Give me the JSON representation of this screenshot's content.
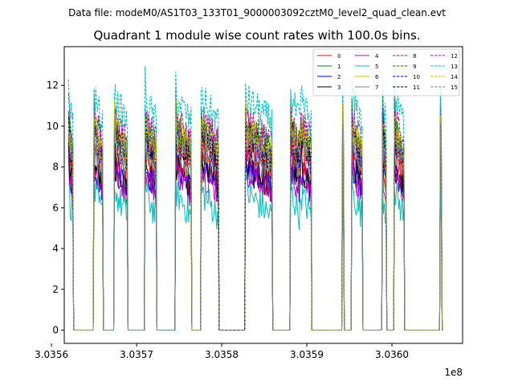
{
  "figure": {
    "suptitle": "Data file: modeM0/AS1T03_133T01_9000003092cztM0_level2_quad_clean.evt",
    "title": "Quadrant 1 module wise count rates with 100.0s bins.",
    "offset_label": "1e8"
  },
  "chart_data": {
    "type": "line",
    "title": "Quadrant 1 module wise count rates with 100.0s bins.",
    "xlabel": "",
    "ylabel": "",
    "xlim": [
      303561500,
      303608300
    ],
    "ylim": [
      -0.65,
      13.9
    ],
    "x_ticks": [
      303560000,
      303570000,
      303580000,
      303590000,
      303600000
    ],
    "x_tick_labels": [
      "3.0356",
      "3.0357",
      "3.0358",
      "3.0359",
      "3.0360"
    ],
    "y_ticks": [
      0,
      2,
      4,
      6,
      8,
      10,
      12
    ],
    "y_tick_labels": [
      "0",
      "2",
      "4",
      "6",
      "8",
      "10",
      "12"
    ],
    "x_offset_text": "1e8",
    "grid": false,
    "legend_position": "top-right",
    "legend_columns": 4,
    "bin_seconds": 100,
    "observation_segments": [
      {
        "start": 303562000,
        "end": 303562500
      },
      {
        "start": 303565000,
        "end": 303566000
      },
      {
        "start": 303567400,
        "end": 303568900
      },
      {
        "start": 303571000,
        "end": 303572300
      },
      {
        "start": 303574600,
        "end": 303576400
      },
      {
        "start": 303577600,
        "end": 303579600
      },
      {
        "start": 303582800,
        "end": 303585900
      },
      {
        "start": 303588100,
        "end": 303589200
      },
      {
        "start": 303589100,
        "end": 303589200
      },
      {
        "start": 303589200,
        "end": 303590500
      },
      {
        "start": 303594200,
        "end": 303594300
      },
      {
        "start": 303595300,
        "end": 303596500
      },
      {
        "start": 303598900,
        "end": 303599300
      },
      {
        "start": 303600300,
        "end": 303601400
      },
      {
        "start": 303605700,
        "end": 303605800
      }
    ],
    "series": [
      {
        "name": "0",
        "color": "#ff0000",
        "dash": "solid",
        "level": 7.3
      },
      {
        "name": "1",
        "color": "#008000",
        "dash": "solid",
        "level": 8.6
      },
      {
        "name": "2",
        "color": "#0000ff",
        "dash": "solid",
        "level": 6.9
      },
      {
        "name": "3",
        "color": "#000000",
        "dash": "solid",
        "level": 7.0
      },
      {
        "name": "4",
        "color": "#bf00bf",
        "dash": "solid",
        "level": 6.7
      },
      {
        "name": "5",
        "color": "#00bfbf",
        "dash": "solid",
        "level": 5.6
      },
      {
        "name": "6",
        "color": "#bfbf00",
        "dash": "solid",
        "level": 8.8
      },
      {
        "name": "7",
        "color": "#808080",
        "dash": "solid",
        "level": 7.9
      },
      {
        "name": "8",
        "color": "#ff0000",
        "dash": "dashed",
        "level": 8.1
      },
      {
        "name": "9",
        "color": "#008000",
        "dash": "dashed",
        "level": 9.0
      },
      {
        "name": "10",
        "color": "#0000ff",
        "dash": "dashed",
        "level": 8.3
      },
      {
        "name": "11",
        "color": "#000000",
        "dash": "dashed",
        "level": 8.4
      },
      {
        "name": "12",
        "color": "#bf00bf",
        "dash": "dashed",
        "level": 9.2
      },
      {
        "name": "13",
        "color": "#00bfbf",
        "dash": "dashed",
        "level": 10.2
      },
      {
        "name": "14",
        "color": "#bfbf00",
        "dash": "dashed",
        "level": 8.7
      },
      {
        "name": "15",
        "color": "#808080",
        "dash": "dashed",
        "level": 8.2
      }
    ]
  }
}
